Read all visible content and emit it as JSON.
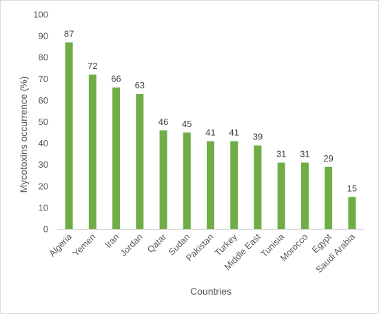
{
  "chart_data": {
    "type": "bar",
    "title": "",
    "xlabel": "Countries",
    "ylabel": "Mycotoxins occurrence (%)",
    "ylim": [
      0,
      100
    ],
    "yticks": [
      0,
      10,
      20,
      30,
      40,
      50,
      60,
      70,
      80,
      90,
      100
    ],
    "grid": false,
    "legend": "none",
    "categories": [
      "Algeria",
      "Yemen",
      "Iran",
      "Jordan",
      "Qatar",
      "Sudan",
      "Pakistan",
      "Turkey",
      "Middle East",
      "Tunisia",
      "Morocco",
      "Egypt",
      "Saudi Arabia"
    ],
    "values": [
      87,
      72,
      66,
      63,
      46,
      45,
      41,
      41,
      39,
      31,
      31,
      29,
      15
    ],
    "bar_color": "#70ad47",
    "data_labels": true
  }
}
